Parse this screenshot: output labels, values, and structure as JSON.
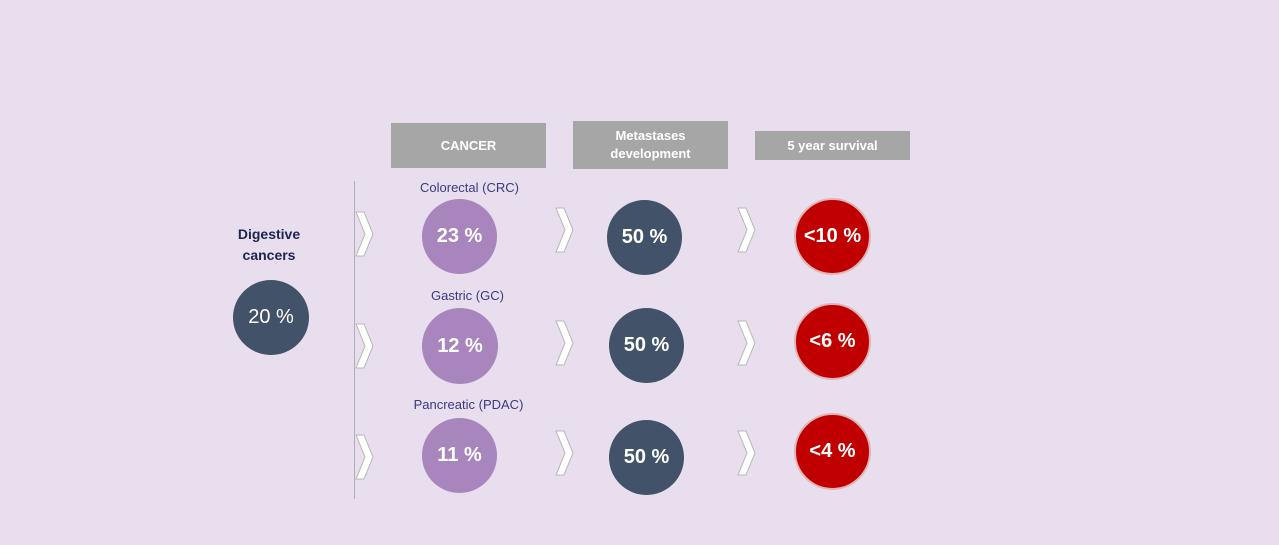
{
  "headers": {
    "cancer": "CANCER",
    "metastases": "Metastases development",
    "survival": "5 year survival"
  },
  "left": {
    "title": "Digestive cancers",
    "value": "20 %"
  },
  "rows": [
    {
      "label": "Colorectal (CRC)",
      "cancer": "23 %",
      "metastases": "50 %",
      "survival": "<10 %"
    },
    {
      "label": "Gastric (GC)",
      "cancer": "12 %",
      "metastases": "50 %",
      "survival": "<6 %"
    },
    {
      "label": "Pancreatic (PDAC)",
      "cancer": "11 %",
      "metastases": "50 %",
      "survival": "<4 %"
    }
  ],
  "colors": {
    "background": "#e8deed",
    "header": "#a6a6a6",
    "cancer_circle": "#a885bd",
    "slate_circle": "#425269",
    "survival_circle": "#c00000",
    "label_text": "#3a3a7e"
  },
  "icons": [
    "chevron-right-icon"
  ]
}
